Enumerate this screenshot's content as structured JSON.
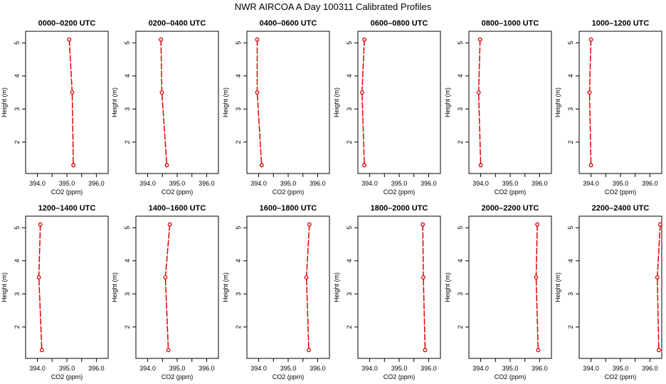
{
  "title": "NWR AIRCOA A  Day 100311  Calibrated Profiles",
  "colors": {
    "series": "#dd0000",
    "axis": "#000000"
  },
  "chart_data": [
    {
      "type": "line",
      "title": "0000–0200 UTC",
      "xlabel": "CO2 (ppm)",
      "ylabel": "Height (m)",
      "xlim": [
        393.6,
        396.4
      ],
      "ylim": [
        1.05,
        5.35
      ],
      "xticks": [
        "394.0",
        "395.0",
        "396.0"
      ],
      "yticks": [
        "2",
        "3",
        "4",
        "5"
      ],
      "x": [
        395.08,
        395.18,
        395.22
      ],
      "y": [
        5.1,
        3.5,
        1.3
      ]
    },
    {
      "type": "line",
      "title": "0200–0400 UTC",
      "xlabel": "CO2 (ppm)",
      "ylabel": "Height (m)",
      "xlim": [
        393.6,
        396.4
      ],
      "ylim": [
        1.05,
        5.35
      ],
      "xticks": [
        "394.0",
        "395.0",
        "396.0"
      ],
      "yticks": [
        "2",
        "3",
        "4",
        "5"
      ],
      "x": [
        394.45,
        394.48,
        394.65
      ],
      "y": [
        5.1,
        3.5,
        1.3
      ]
    },
    {
      "type": "line",
      "title": "0400–0600 UTC",
      "xlabel": "CO2 (ppm)",
      "ylabel": "Height (m)",
      "xlim": [
        393.6,
        396.4
      ],
      "ylim": [
        1.05,
        5.35
      ],
      "xticks": [
        "394.0",
        "395.0",
        "396.0"
      ],
      "yticks": [
        "2",
        "3",
        "4",
        "5"
      ],
      "x": [
        393.95,
        393.95,
        394.1
      ],
      "y": [
        5.1,
        3.5,
        1.3
      ]
    },
    {
      "type": "line",
      "title": "0600–0800 UTC",
      "xlabel": "CO2 (ppm)",
      "ylabel": "Height (m)",
      "xlim": [
        393.6,
        396.4
      ],
      "ylim": [
        1.05,
        5.35
      ],
      "xticks": [
        "394.0",
        "395.0",
        "396.0"
      ],
      "yticks": [
        "2",
        "3",
        "4",
        "5"
      ],
      "x": [
        393.82,
        393.74,
        393.82
      ],
      "y": [
        5.1,
        3.5,
        1.3
      ]
    },
    {
      "type": "line",
      "title": "0800–1000 UTC",
      "xlabel": "CO2 (ppm)",
      "ylabel": "Height (m)",
      "xlim": [
        393.6,
        396.4
      ],
      "ylim": [
        1.05,
        5.35
      ],
      "xticks": [
        "394.0",
        "395.0",
        "396.0"
      ],
      "yticks": [
        "2",
        "3",
        "4",
        "5"
      ],
      "x": [
        393.98,
        393.93,
        394.0
      ],
      "y": [
        5.1,
        3.5,
        1.3
      ]
    },
    {
      "type": "line",
      "title": "1000–1200 UTC",
      "xlabel": "CO2 (ppm)",
      "ylabel": "Height (m)",
      "xlim": [
        393.6,
        396.4
      ],
      "ylim": [
        1.05,
        5.35
      ],
      "xticks": [
        "394.0",
        "395.0",
        "396.0"
      ],
      "yticks": [
        "2",
        "3",
        "4",
        "5"
      ],
      "x": [
        394.0,
        393.95,
        394.0
      ],
      "y": [
        5.1,
        3.5,
        1.3
      ]
    },
    {
      "type": "line",
      "title": "1200–1400 UTC",
      "xlabel": "CO2 (ppm)",
      "ylabel": "Height (m)",
      "xlim": [
        393.6,
        396.4
      ],
      "ylim": [
        1.05,
        5.35
      ],
      "xticks": [
        "394.0",
        "395.0",
        "396.0"
      ],
      "yticks": [
        "2",
        "3",
        "4",
        "5"
      ],
      "x": [
        394.1,
        394.05,
        394.15
      ],
      "y": [
        5.1,
        3.5,
        1.3
      ]
    },
    {
      "type": "line",
      "title": "1400–1600 UTC",
      "xlabel": "CO2 (ppm)",
      "ylabel": "Height (m)",
      "xlim": [
        393.6,
        396.4
      ],
      "ylim": [
        1.05,
        5.35
      ],
      "xticks": [
        "394.0",
        "395.0",
        "396.0"
      ],
      "yticks": [
        "2",
        "3",
        "4",
        "5"
      ],
      "x": [
        394.75,
        394.6,
        394.7
      ],
      "y": [
        5.1,
        3.5,
        1.3
      ]
    },
    {
      "type": "line",
      "title": "1600–1800 UTC",
      "xlabel": "CO2 (ppm)",
      "ylabel": "Height (m)",
      "xlim": [
        393.6,
        396.4
      ],
      "ylim": [
        1.05,
        5.35
      ],
      "xticks": [
        "394.0",
        "395.0",
        "396.0"
      ],
      "yticks": [
        "2",
        "3",
        "4",
        "5"
      ],
      "x": [
        395.72,
        395.62,
        395.7
      ],
      "y": [
        5.1,
        3.5,
        1.3
      ]
    },
    {
      "type": "line",
      "title": "1800–2000 UTC",
      "xlabel": "CO2 (ppm)",
      "ylabel": "Height (m)",
      "xlim": [
        393.6,
        396.4
      ],
      "ylim": [
        1.05,
        5.35
      ],
      "xticks": [
        "394.0",
        "395.0",
        "396.0"
      ],
      "yticks": [
        "2",
        "3",
        "4",
        "5"
      ],
      "x": [
        395.8,
        395.82,
        395.88
      ],
      "y": [
        5.1,
        3.5,
        1.3
      ]
    },
    {
      "type": "line",
      "title": "2000–2200 UTC",
      "xlabel": "CO2 (ppm)",
      "ylabel": "Height (m)",
      "xlim": [
        393.6,
        396.4
      ],
      "ylim": [
        1.05,
        5.35
      ],
      "xticks": [
        "394.0",
        "395.0",
        "396.0"
      ],
      "yticks": [
        "2",
        "3",
        "4",
        "5"
      ],
      "x": [
        395.92,
        395.88,
        395.95
      ],
      "y": [
        5.1,
        3.5,
        1.3
      ]
    },
    {
      "type": "line",
      "title": "2200–2400 UTC",
      "xlabel": "CO2 (ppm)",
      "ylabel": "Height (m)",
      "xlim": [
        393.6,
        396.4
      ],
      "ylim": [
        1.05,
        5.35
      ],
      "xticks": [
        "394.0",
        "395.0",
        "396.0"
      ],
      "yticks": [
        "2",
        "3",
        "4",
        "5"
      ],
      "x": [
        396.35,
        396.25,
        396.3
      ],
      "y": [
        5.1,
        3.5,
        1.3
      ]
    }
  ]
}
